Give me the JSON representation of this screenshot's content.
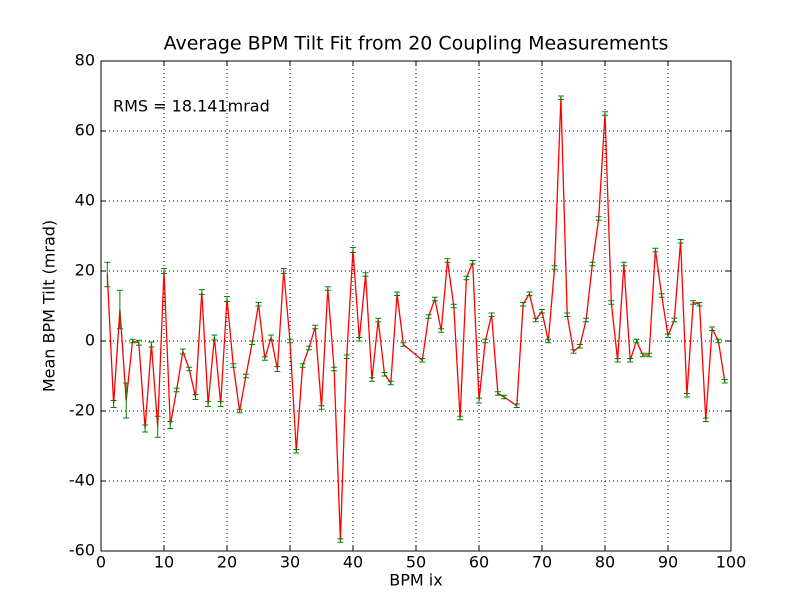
{
  "chart_data": {
    "type": "errorbar_line",
    "title": "Average BPM Tilt Fit from 20 Coupling Measurements",
    "xlabel": "BPM ix",
    "ylabel": "Mean BPM Tilt (mrad)",
    "annotation": "RMS = 18.141mrad",
    "x": [
      1,
      2,
      3,
      4,
      5,
      6,
      7,
      8,
      9,
      10,
      11,
      12,
      13,
      14,
      15,
      16,
      17,
      18,
      19,
      20,
      21,
      22,
      23,
      24,
      25,
      26,
      27,
      28,
      29,
      30,
      31,
      32,
      33,
      34,
      35,
      36,
      37,
      38,
      39,
      40,
      41,
      42,
      43,
      44,
      45,
      46,
      47,
      48,
      51,
      52,
      53,
      54,
      55,
      56,
      57,
      58,
      59,
      60,
      61,
      62,
      63,
      64,
      66,
      67,
      68,
      69,
      70,
      71,
      72,
      73,
      74,
      75,
      76,
      77,
      78,
      79,
      80,
      81,
      82,
      83,
      84,
      85,
      86,
      87,
      88,
      89,
      90,
      91,
      92,
      93,
      94,
      95,
      96,
      97,
      98,
      99
    ],
    "values": [
      19,
      -18,
      9,
      -17,
      0,
      -0.5,
      -25,
      -1,
      -24.5,
      20,
      -24,
      -14,
      -3,
      -8,
      -16,
      14,
      -18,
      1,
      -18,
      12,
      -7,
      -20,
      -10,
      -0.5,
      10.5,
      -5,
      1,
      -8,
      20,
      0,
      -31.5,
      -7,
      -2,
      4,
      -19,
      15,
      -8,
      -57,
      -4.5,
      26,
      0.5,
      19,
      -11,
      6,
      -9.5,
      -12,
      13.5,
      -1,
      -5.5,
      7,
      12,
      3,
      23,
      10,
      -22,
      18,
      22.5,
      -17,
      0,
      7.5,
      -15,
      -16,
      -18.5,
      10.5,
      13.5,
      6,
      8.5,
      0,
      21,
      69.5,
      7.5,
      -3,
      -1.5,
      6,
      22,
      35,
      65,
      11,
      -5.5,
      22,
      -5.5,
      0,
      -4,
      -4,
      26,
      13,
      1.5,
      6,
      28.5,
      -15.5,
      11,
      10.5,
      -22.5,
      3.5,
      0,
      -11.5
    ],
    "errors": [
      3.5,
      1,
      5.5,
      5,
      0.5,
      0.7,
      1,
      0.7,
      3,
      0.7,
      1,
      0.5,
      0.7,
      0.5,
      0.7,
      0.7,
      0.7,
      0.7,
      0.7,
      0.7,
      0.5,
      0.5,
      0.5,
      0.5,
      0.5,
      0.5,
      0.7,
      0.7,
      0.7,
      0.5,
      0.5,
      0.5,
      0.5,
      0.5,
      0.5,
      0.5,
      0.5,
      0.5,
      0.5,
      0.7,
      0.5,
      0.5,
      0.5,
      0.5,
      0.5,
      0.5,
      0.5,
      0.5,
      0.5,
      0.5,
      0.5,
      0.5,
      0.5,
      0.5,
      0.5,
      0.5,
      0.5,
      0.7,
      0.5,
      0.5,
      0.5,
      0.5,
      0.5,
      0.5,
      0.5,
      0.5,
      0.5,
      0.5,
      0.5,
      0.5,
      0.5,
      0.5,
      0.5,
      0.5,
      0.5,
      0.5,
      0.5,
      0.5,
      0.5,
      0.5,
      0.5,
      0.5,
      0.5,
      0.5,
      0.5,
      0.5,
      0.5,
      0.5,
      0.5,
      0.5,
      0.5,
      0.5,
      0.5,
      0.5,
      0.5,
      0.5
    ],
    "color": "#ff0000",
    "error_color": "#008000",
    "xlim": [
      0,
      100
    ],
    "xticks": [
      0,
      10,
      20,
      30,
      40,
      50,
      60,
      70,
      80,
      90,
      100
    ],
    "ylim": [
      -60,
      80
    ],
    "yticks": [
      -60,
      -40,
      -20,
      0,
      20,
      40,
      60,
      80
    ],
    "grid": true
  }
}
